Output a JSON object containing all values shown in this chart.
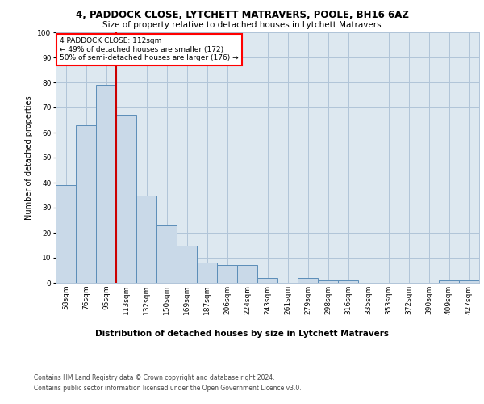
{
  "title1": "4, PADDOCK CLOSE, LYTCHETT MATRAVERS, POOLE, BH16 6AZ",
  "title2": "Size of property relative to detached houses in Lytchett Matravers",
  "xlabel": "Distribution of detached houses by size in Lytchett Matravers",
  "ylabel": "Number of detached properties",
  "footer1": "Contains HM Land Registry data © Crown copyright and database right 2024.",
  "footer2": "Contains public sector information licensed under the Open Government Licence v3.0.",
  "categories": [
    "58sqm",
    "76sqm",
    "95sqm",
    "113sqm",
    "132sqm",
    "150sqm",
    "169sqm",
    "187sqm",
    "206sqm",
    "224sqm",
    "243sqm",
    "261sqm",
    "279sqm",
    "298sqm",
    "316sqm",
    "335sqm",
    "353sqm",
    "372sqm",
    "390sqm",
    "409sqm",
    "427sqm"
  ],
  "values": [
    39,
    63,
    79,
    67,
    35,
    23,
    15,
    8,
    7,
    7,
    2,
    0,
    2,
    1,
    1,
    0,
    0,
    0,
    0,
    1,
    1
  ],
  "bar_color": "#c9d9e8",
  "bar_edge_color": "#5b8db8",
  "property_line_x": 2.5,
  "property_label": "4 PADDOCK CLOSE: 112sqm",
  "annotation_line1": "← 49% of detached houses are smaller (172)",
  "annotation_line2": "50% of semi-detached houses are larger (176) →",
  "annotation_box_color": "white",
  "annotation_box_edge": "red",
  "vline_color": "#cc0000",
  "grid_color": "#b0c4d8",
  "background_color": "#dde8f0",
  "ylim": [
    0,
    100
  ],
  "yticks": [
    0,
    10,
    20,
    30,
    40,
    50,
    60,
    70,
    80,
    90,
    100
  ],
  "title1_fontsize": 8.5,
  "title2_fontsize": 7.5,
  "xlabel_fontsize": 7.5,
  "ylabel_fontsize": 7.0,
  "tick_fontsize": 6.5,
  "annotation_fontsize": 6.5,
  "footer_fontsize": 5.5
}
